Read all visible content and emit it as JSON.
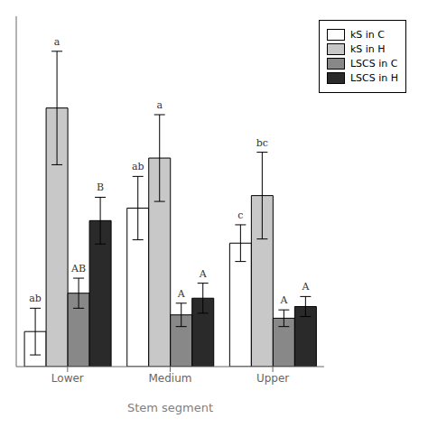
{
  "chart_data": {
    "type": "bar",
    "categories": [
      "Lower",
      "Medium",
      "Upper"
    ],
    "xlabel": "Stem segment",
    "series": [
      {
        "name": "kS in C",
        "color": "#ffffff",
        "values": [
          42,
          190,
          148
        ],
        "errors": [
          28,
          38,
          22
        ],
        "annotations": [
          "ab",
          "ab",
          "c"
        ]
      },
      {
        "name": "kS in H",
        "color": "#c8c8c8",
        "values": [
          310,
          250,
          205
        ],
        "errors": [
          68,
          52,
          52
        ],
        "annotations": [
          "a",
          "a",
          "bc"
        ]
      },
      {
        "name": "LSCS in C",
        "color": "#888888",
        "values": [
          88,
          62,
          58
        ],
        "errors": [
          18,
          14,
          10
        ],
        "annotations": [
          "AB",
          "A",
          "A"
        ]
      },
      {
        "name": "LSCS in H",
        "color": "#2a2a2a",
        "values": [
          175,
          82,
          72
        ],
        "errors": [
          28,
          18,
          12
        ],
        "annotations": [
          "B",
          "A",
          "A"
        ]
      }
    ],
    "ylim": [
      0,
      420
    ],
    "yticks": [],
    "tick_labels": "x",
    "grid": false,
    "legend": "upper right"
  }
}
